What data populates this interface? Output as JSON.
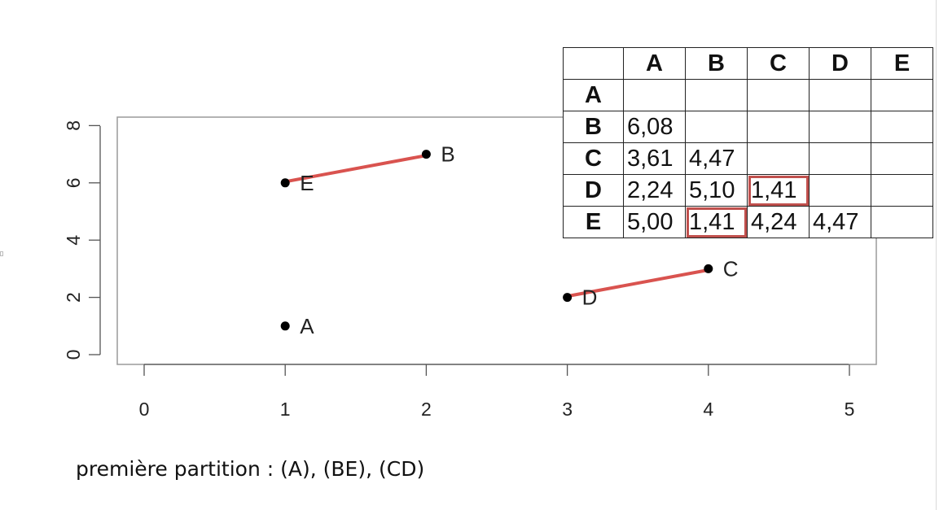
{
  "chart_data": {
    "type": "scatter",
    "xlim": [
      0,
      5
    ],
    "ylim": [
      0,
      8
    ],
    "x_ticks": [
      0,
      1,
      2,
      3,
      4,
      5
    ],
    "y_ticks": [
      0,
      2,
      4,
      6,
      8
    ],
    "points": [
      {
        "label": "A",
        "x": 1,
        "y": 1
      },
      {
        "label": "B",
        "x": 2,
        "y": 7
      },
      {
        "label": "C",
        "x": 4,
        "y": 3
      },
      {
        "label": "D",
        "x": 3,
        "y": 2
      },
      {
        "label": "E",
        "x": 1,
        "y": 6
      }
    ],
    "links": [
      {
        "from": "E",
        "to": "B"
      },
      {
        "from": "D",
        "to": "C"
      }
    ],
    "point_color": "#000000",
    "link_color": "#d9534f"
  },
  "distance_table": {
    "headers": [
      "A",
      "B",
      "C",
      "D",
      "E"
    ],
    "rows": [
      {
        "label": "A",
        "cells": [
          "",
          "",
          "",
          "",
          ""
        ]
      },
      {
        "label": "B",
        "cells": [
          "6,08",
          "",
          "",
          "",
          ""
        ]
      },
      {
        "label": "C",
        "cells": [
          "3,61",
          "4,47",
          "",
          "",
          ""
        ]
      },
      {
        "label": "D",
        "cells": [
          "2,24",
          "5,10",
          "1,41",
          "",
          ""
        ]
      },
      {
        "label": "E",
        "cells": [
          "5,00",
          "1,41",
          "4,24",
          "4,47",
          ""
        ]
      }
    ],
    "highlighted": [
      {
        "row": "D",
        "col": "C"
      },
      {
        "row": "E",
        "col": "B"
      }
    ],
    "highlight_color": "#c0504d"
  },
  "caption": "première partition : (A), (BE), (CD)"
}
